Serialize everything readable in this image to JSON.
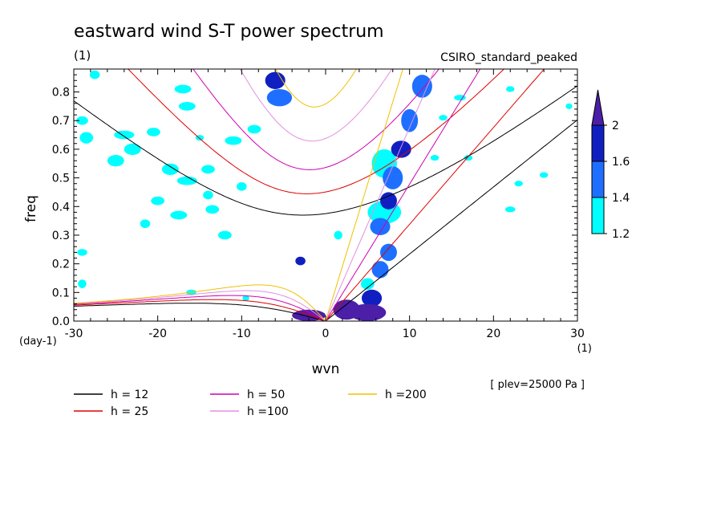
{
  "chart_data": {
    "type": "heatmap",
    "title": "eastward wind S-T power spectrum",
    "title_units": "(1)",
    "subtitle": "CSIRO_standard_peaked",
    "xlabel": "wvn",
    "x_units": "(1)",
    "ylabel": "freq",
    "y_units": "(day-1)",
    "annotation": "[ plev=25000 Pa ]",
    "xlim": [
      -30,
      30
    ],
    "ylim": [
      0,
      0.88
    ],
    "x_ticks": [
      "-30",
      "-20",
      "-10",
      "0",
      "10",
      "20",
      "30"
    ],
    "y_ticks": [
      "0.0",
      "0.1",
      "0.2",
      "0.3",
      "0.4",
      "0.5",
      "0.6",
      "0.7",
      "0.8"
    ],
    "colorbar": {
      "levels": [
        "1.2",
        "1.4",
        "1.6",
        "2"
      ],
      "colors": [
        "#00ffff",
        "#1e6fff",
        "#1020c0",
        "#4b1fa8"
      ]
    },
    "dispersion_curves": [
      {
        "label": "h = 12",
        "h": 12,
        "color": "#000000"
      },
      {
        "label": "h = 25",
        "h": 25,
        "color": "#e00000"
      },
      {
        "label": "h = 50",
        "h": 50,
        "color": "#d000b0"
      },
      {
        "label": "h =100",
        "h": 100,
        "color": "#e090e0"
      },
      {
        "label": "h =200",
        "h": 200,
        "color": "#f0c000"
      }
    ],
    "blobs": [
      {
        "x": 5,
        "y": 0.03,
        "level": 4,
        "rx": 2.2,
        "ry": 0.03
      },
      {
        "x": 2.5,
        "y": 0.04,
        "level": 4,
        "rx": 1.6,
        "ry": 0.035
      },
      {
        "x": -2,
        "y": 0.02,
        "level": 4,
        "rx": 2.0,
        "ry": 0.02
      },
      {
        "x": -3,
        "y": 0.21,
        "level": 3,
        "rx": 0.6,
        "ry": 0.015
      },
      {
        "x": 5.5,
        "y": 0.08,
        "level": 3,
        "rx": 1.2,
        "ry": 0.03
      },
      {
        "x": 6.5,
        "y": 0.18,
        "level": 2,
        "rx": 1.0,
        "ry": 0.03
      },
      {
        "x": 7.5,
        "y": 0.24,
        "level": 2,
        "rx": 1.0,
        "ry": 0.03
      },
      {
        "x": 7.5,
        "y": 0.42,
        "level": 3,
        "rx": 1.0,
        "ry": 0.03
      },
      {
        "x": 8,
        "y": 0.5,
        "level": 2,
        "rx": 1.2,
        "ry": 0.04
      },
      {
        "x": 9,
        "y": 0.6,
        "level": 3,
        "rx": 1.2,
        "ry": 0.03
      },
      {
        "x": 10,
        "y": 0.7,
        "level": 2,
        "rx": 1.0,
        "ry": 0.04
      },
      {
        "x": 11.5,
        "y": 0.82,
        "level": 2,
        "rx": 1.2,
        "ry": 0.04
      },
      {
        "x": -6,
        "y": 0.84,
        "level": 3,
        "rx": 1.2,
        "ry": 0.03
      },
      {
        "x": -5.5,
        "y": 0.78,
        "level": 2,
        "rx": 1.5,
        "ry": 0.03
      },
      {
        "x": 6.5,
        "y": 0.33,
        "level": 2,
        "rx": 1.2,
        "ry": 0.03
      },
      {
        "x": 7,
        "y": 0.38,
        "level": 1,
        "rx": 2.0,
        "ry": 0.04
      },
      {
        "x": -29,
        "y": 0.7,
        "level": 1,
        "rx": 0.7,
        "ry": 0.015
      },
      {
        "x": -28.5,
        "y": 0.64,
        "level": 1,
        "rx": 0.8,
        "ry": 0.02
      },
      {
        "x": -25,
        "y": 0.56,
        "level": 1,
        "rx": 1.0,
        "ry": 0.02
      },
      {
        "x": -24,
        "y": 0.65,
        "level": 1,
        "rx": 1.2,
        "ry": 0.015
      },
      {
        "x": -23,
        "y": 0.6,
        "level": 1,
        "rx": 1.0,
        "ry": 0.02
      },
      {
        "x": -20.5,
        "y": 0.66,
        "level": 1,
        "rx": 0.8,
        "ry": 0.015
      },
      {
        "x": -18.5,
        "y": 0.53,
        "level": 1,
        "rx": 1.0,
        "ry": 0.02
      },
      {
        "x": -16.5,
        "y": 0.49,
        "level": 1,
        "rx": 1.2,
        "ry": 0.015
      },
      {
        "x": -14,
        "y": 0.44,
        "level": 1,
        "rx": 0.6,
        "ry": 0.015
      },
      {
        "x": -13.5,
        "y": 0.39,
        "level": 1,
        "rx": 0.8,
        "ry": 0.015
      },
      {
        "x": -10,
        "y": 0.47,
        "level": 1,
        "rx": 0.6,
        "ry": 0.015
      },
      {
        "x": -11,
        "y": 0.63,
        "level": 1,
        "rx": 1.0,
        "ry": 0.015
      },
      {
        "x": -16.5,
        "y": 0.75,
        "level": 1,
        "rx": 1.0,
        "ry": 0.015
      },
      {
        "x": -17,
        "y": 0.81,
        "level": 1,
        "rx": 1.0,
        "ry": 0.015
      },
      {
        "x": -8.5,
        "y": 0.67,
        "level": 1,
        "rx": 0.8,
        "ry": 0.015
      },
      {
        "x": -20,
        "y": 0.42,
        "level": 1,
        "rx": 0.8,
        "ry": 0.015
      },
      {
        "x": -17.5,
        "y": 0.37,
        "level": 1,
        "rx": 1.0,
        "ry": 0.015
      },
      {
        "x": -12,
        "y": 0.3,
        "level": 1,
        "rx": 0.8,
        "ry": 0.015
      },
      {
        "x": -21.5,
        "y": 0.34,
        "level": 1,
        "rx": 0.6,
        "ry": 0.015
      },
      {
        "x": -29,
        "y": 0.24,
        "level": 1,
        "rx": 0.6,
        "ry": 0.012
      },
      {
        "x": -29,
        "y": 0.13,
        "level": 1,
        "rx": 0.5,
        "ry": 0.015
      },
      {
        "x": -14,
        "y": 0.53,
        "level": 1,
        "rx": 0.8,
        "ry": 0.015
      },
      {
        "x": 1.5,
        "y": 0.3,
        "level": 1,
        "rx": 0.5,
        "ry": 0.015
      },
      {
        "x": -9.5,
        "y": 0.08,
        "level": 1,
        "rx": 0.4,
        "ry": 0.01
      },
      {
        "x": -16,
        "y": 0.1,
        "level": 1,
        "rx": 0.6,
        "ry": 0.01
      },
      {
        "x": 22,
        "y": 0.39,
        "level": 1,
        "rx": 0.6,
        "ry": 0.01
      },
      {
        "x": 23,
        "y": 0.48,
        "level": 1,
        "rx": 0.5,
        "ry": 0.01
      },
      {
        "x": 26,
        "y": 0.51,
        "level": 1,
        "rx": 0.5,
        "ry": 0.01
      },
      {
        "x": 29,
        "y": 0.75,
        "level": 1,
        "rx": 0.4,
        "ry": 0.01
      },
      {
        "x": 22,
        "y": 0.81,
        "level": 1,
        "rx": 0.5,
        "ry": 0.01
      },
      {
        "x": 16,
        "y": 0.78,
        "level": 1,
        "rx": 0.7,
        "ry": 0.01
      },
      {
        "x": 14,
        "y": 0.71,
        "level": 1,
        "rx": 0.5,
        "ry": 0.01
      },
      {
        "x": 13,
        "y": 0.57,
        "level": 1,
        "rx": 0.5,
        "ry": 0.01
      },
      {
        "x": 17,
        "y": 0.57,
        "level": 1,
        "rx": 0.5,
        "ry": 0.01
      },
      {
        "x": -27.5,
        "y": 0.86,
        "level": 1,
        "rx": 0.6,
        "ry": 0.015
      },
      {
        "x": -15,
        "y": 0.64,
        "level": 1,
        "rx": 0.5,
        "ry": 0.01
      },
      {
        "x": 5,
        "y": 0.13,
        "level": 1,
        "rx": 0.8,
        "ry": 0.02
      },
      {
        "x": 7,
        "y": 0.55,
        "level": 1,
        "rx": 1.5,
        "ry": 0.05
      }
    ]
  }
}
